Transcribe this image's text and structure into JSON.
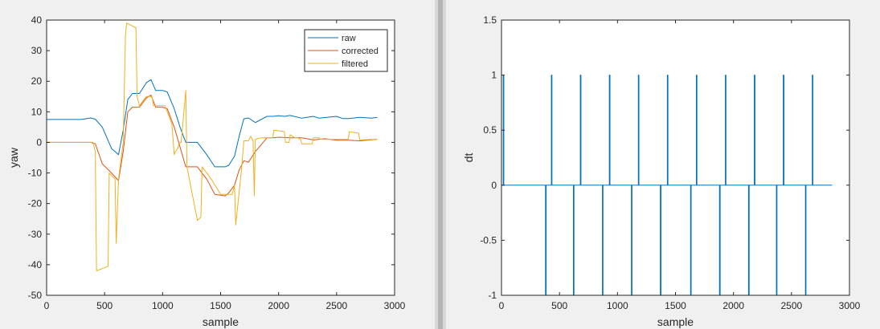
{
  "chart_data": [
    {
      "type": "line",
      "xlabel": "sample",
      "ylabel": "yaw",
      "xlim": [
        0,
        3000
      ],
      "ylim": [
        -50,
        40
      ],
      "xticks": [
        0,
        500,
        1000,
        1500,
        2000,
        2500,
        3000
      ],
      "yticks": [
        -50,
        -40,
        -30,
        -20,
        -10,
        0,
        10,
        20,
        30,
        40
      ],
      "grid": false,
      "legend_position": "top-right",
      "series": [
        {
          "name": "raw",
          "color": "#0072BD",
          "x": [
            0,
            300,
            380,
            420,
            480,
            560,
            620,
            660,
            700,
            740,
            800,
            860,
            900,
            940,
            1000,
            1040,
            1100,
            1150,
            1200,
            1300,
            1380,
            1450,
            1540,
            1570,
            1620,
            1660,
            1700,
            1740,
            1800,
            1900,
            1950,
            2000,
            2050,
            2100,
            2200,
            2300,
            2350,
            2500,
            2550,
            2600,
            2700,
            2800,
            2850
          ],
          "y": [
            7.5,
            7.5,
            8,
            7.6,
            5,
            -2,
            -4,
            4,
            14,
            16,
            16,
            19.5,
            20.5,
            17,
            17,
            16.5,
            11,
            5,
            0,
            0,
            -4,
            -8,
            -8,
            -7.5,
            -4.5,
            2,
            7.7,
            8,
            6.5,
            8.5,
            8.5,
            8.7,
            8.5,
            8.8,
            7.9,
            8.5,
            7.9,
            8.5,
            7.8,
            7.8,
            8.2,
            7.9,
            8.2
          ]
        },
        {
          "name": "corrected",
          "color": "#D95319",
          "x": [
            0,
            380,
            420,
            480,
            560,
            620,
            660,
            700,
            740,
            800,
            860,
            900,
            940,
            1000,
            1040,
            1100,
            1150,
            1200,
            1300,
            1380,
            1450,
            1540,
            1570,
            1620,
            1660,
            1700,
            1740,
            1800,
            1900,
            1950,
            2000,
            2100,
            2200,
            2300,
            2400,
            2500,
            2600,
            2700,
            2850
          ],
          "y": [
            0,
            0,
            -0.5,
            -7,
            -10,
            -12.5,
            -3,
            10,
            11.5,
            11.5,
            14.5,
            15.5,
            11.5,
            11.5,
            11,
            5,
            -1.5,
            -8,
            -8,
            -12,
            -17,
            -17.5,
            -16.5,
            -14,
            -9,
            -6,
            -6.5,
            -3,
            1.5,
            1.5,
            1.7,
            1.5,
            1.5,
            0.8,
            1.2,
            0.7,
            0.7,
            0.5,
            1
          ]
        },
        {
          "name": "filtered",
          "color": "#EDB120",
          "x": [
            0,
            400,
            420,
            430,
            530,
            540,
            590,
            600,
            620,
            660,
            680,
            690,
            770,
            780,
            800,
            860,
            910,
            920,
            1020,
            1040,
            1080,
            1100,
            1110,
            1130,
            1140,
            1160,
            1200,
            1210,
            1300,
            1330,
            1340,
            1420,
            1500,
            1600,
            1620,
            1630,
            1680,
            1700,
            1740,
            1760,
            1780,
            1790,
            1800,
            1850,
            1900,
            1950,
            1960,
            2050,
            2060,
            2090,
            2100,
            2140,
            2160,
            2190,
            2200,
            2290,
            2300,
            2350,
            2360,
            2600,
            2610,
            2690,
            2700,
            2850
          ],
          "y": [
            0,
            0,
            -3,
            -42,
            -40.5,
            -10,
            -12,
            -33,
            -12,
            0,
            35,
            39,
            37.5,
            15,
            12,
            15,
            15,
            12,
            12,
            10,
            6,
            -4,
            -3,
            -2,
            -0.5,
            0,
            17,
            -8,
            -25.5,
            -24.5,
            -8,
            -12,
            -17,
            -17,
            -14,
            -27,
            -9,
            0.5,
            0.5,
            2,
            0.5,
            -17.5,
            1,
            1.5,
            1.5,
            1.5,
            4,
            3.5,
            0,
            0,
            2.5,
            1.5,
            1.5,
            1,
            -0.5,
            -0.5,
            1.5,
            1.5,
            1,
            1,
            3.5,
            3,
            0.8,
            1
          ]
        }
      ]
    },
    {
      "type": "line",
      "xlabel": "sample",
      "ylabel": "dt",
      "xlim": [
        0,
        3000
      ],
      "ylim": [
        -1,
        1.5
      ],
      "xticks": [
        0,
        500,
        1000,
        1500,
        2000,
        2500,
        3000
      ],
      "yticks": [
        -1,
        -0.5,
        0,
        0.5,
        1,
        1.5
      ],
      "grid": false,
      "series": [
        {
          "color": "#0072BD",
          "x": [
            0,
            15,
            15,
            20,
            20,
            380,
            380,
            385,
            385,
            430,
            430,
            435,
            435,
            620,
            620,
            625,
            625,
            680,
            680,
            685,
            685,
            870,
            870,
            875,
            875,
            930,
            930,
            935,
            935,
            1120,
            1120,
            1125,
            1125,
            1180,
            1180,
            1185,
            1185,
            1370,
            1370,
            1375,
            1375,
            1430,
            1430,
            1435,
            1435,
            1630,
            1630,
            1635,
            1635,
            1680,
            1680,
            1685,
            1685,
            1880,
            1880,
            1885,
            1885,
            1930,
            1930,
            1935,
            1935,
            2130,
            2130,
            2135,
            2135,
            2180,
            2180,
            2185,
            2185,
            2370,
            2370,
            2375,
            2375,
            2430,
            2430,
            2435,
            2435,
            2620,
            2620,
            2625,
            2625,
            2680,
            2680,
            2685,
            2685,
            2850
          ],
          "y": [
            0,
            0,
            1,
            1,
            0,
            0,
            -1,
            -1,
            0,
            0,
            1,
            1,
            0,
            0,
            -1,
            -1,
            0,
            0,
            1,
            1,
            0,
            0,
            -1,
            -1,
            0,
            0,
            1,
            1,
            0,
            0,
            -1,
            -1,
            0,
            0,
            1,
            1,
            0,
            0,
            -1,
            -1,
            0,
            0,
            1,
            1,
            0,
            0,
            -1,
            -1,
            0,
            0,
            1,
            1,
            0,
            0,
            -1,
            -1,
            0,
            0,
            1,
            1,
            0,
            0,
            -1,
            -1,
            0,
            0,
            1,
            1,
            0,
            0,
            -1,
            -1,
            0,
            0,
            1,
            1,
            0,
            0,
            -1,
            -1,
            0,
            0,
            1,
            1,
            0,
            0
          ]
        }
      ]
    }
  ]
}
